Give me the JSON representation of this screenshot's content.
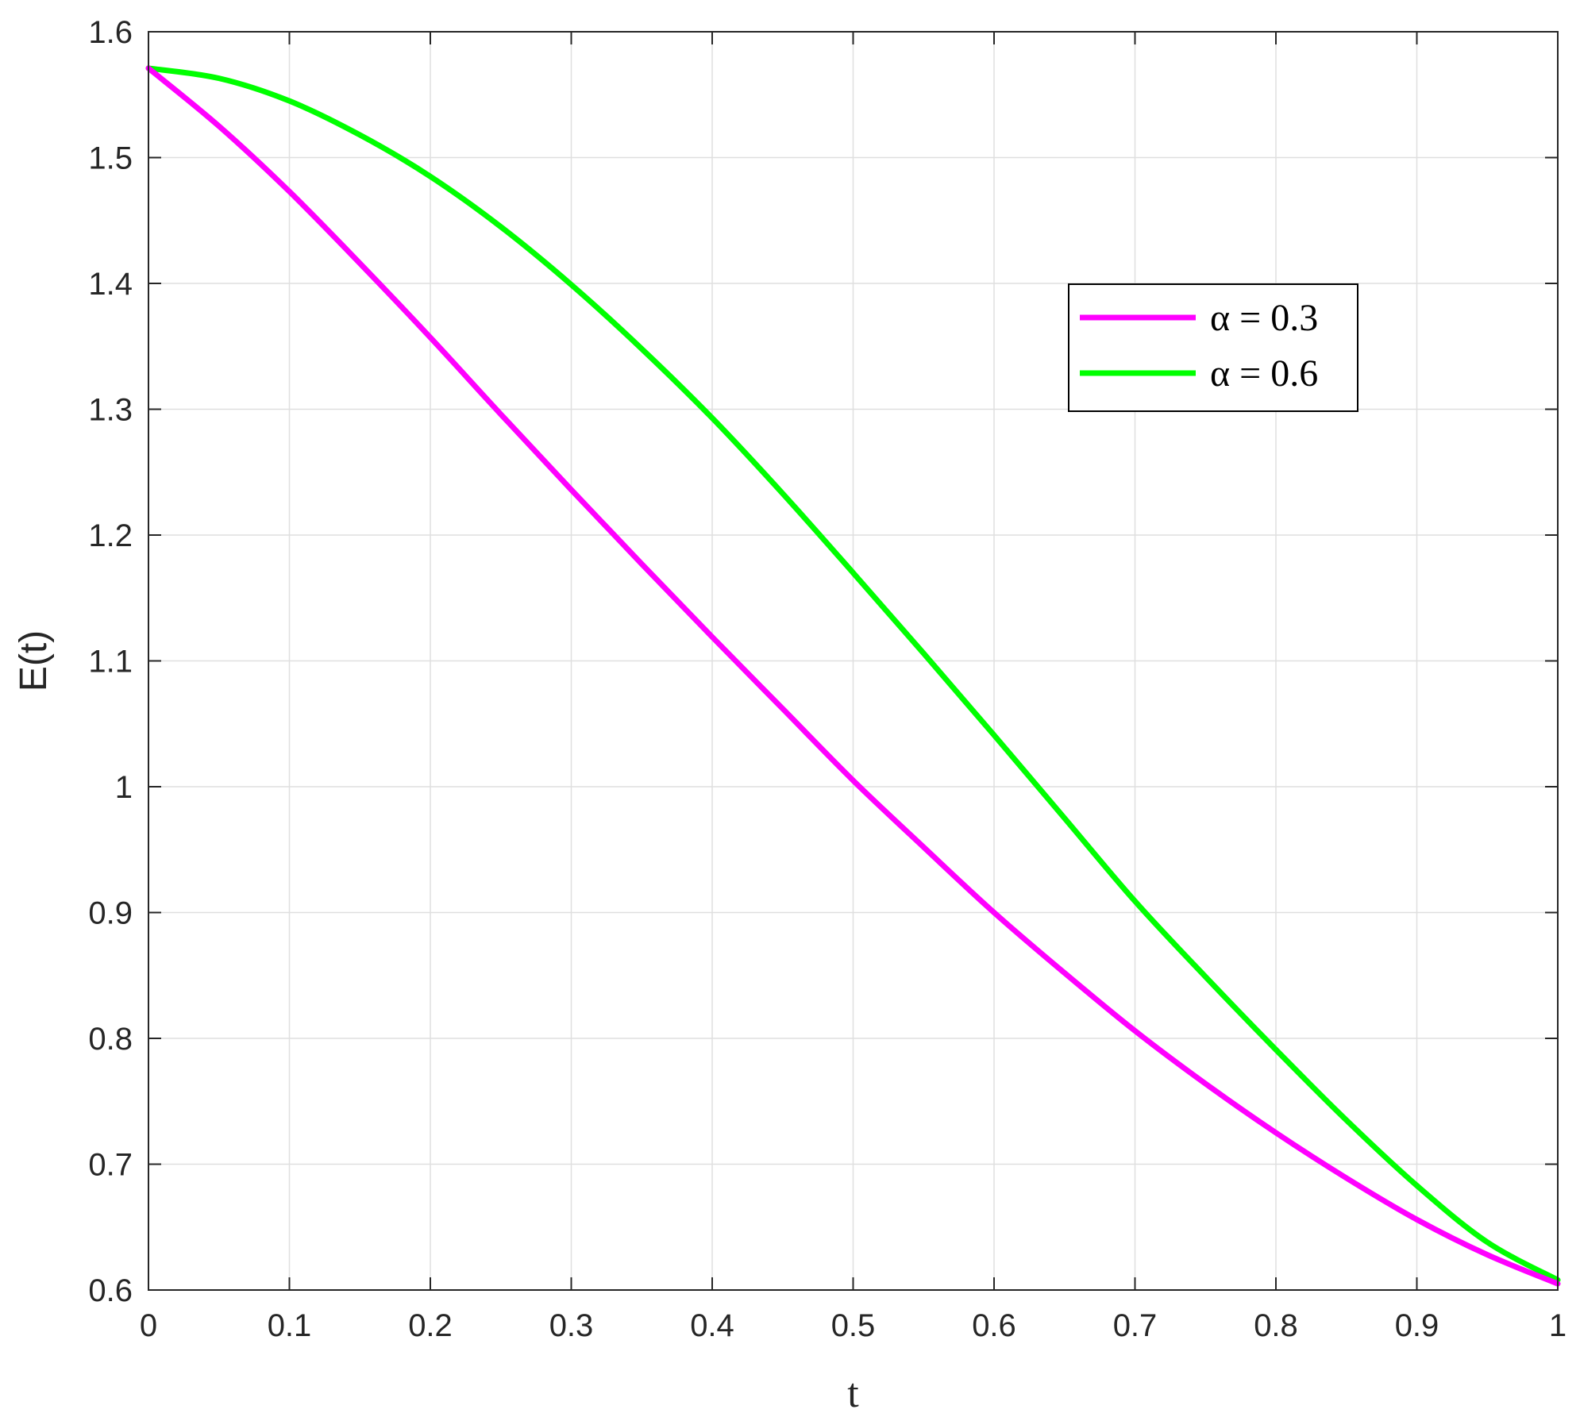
{
  "chart_data": {
    "type": "line",
    "title": "",
    "xlabel": "t",
    "ylabel": "E(t)",
    "xlim": [
      0,
      1
    ],
    "ylim": [
      0.6,
      1.6
    ],
    "xticks": [
      0,
      0.1,
      0.2,
      0.3,
      0.4,
      0.5,
      0.6,
      0.7,
      0.8,
      0.9,
      1
    ],
    "xtick_labels": [
      "0",
      "0.1",
      "0.2",
      "0.3",
      "0.4",
      "0.5",
      "0.6",
      "0.7",
      "0.8",
      "0.9",
      "1"
    ],
    "yticks": [
      0.6,
      0.7,
      0.8,
      0.9,
      1.0,
      1.1,
      1.2,
      1.3,
      1.4,
      1.5,
      1.6
    ],
    "ytick_labels": [
      "0.6",
      "0.7",
      "0.8",
      "0.9",
      "1",
      "1.1",
      "1.2",
      "1.3",
      "1.4",
      "1.5",
      "1.6"
    ],
    "grid": true,
    "legend_position": "top-right",
    "x": [
      0,
      0.05,
      0.1,
      0.15,
      0.2,
      0.25,
      0.3,
      0.35,
      0.4,
      0.45,
      0.5,
      0.55,
      0.6,
      0.65,
      0.7,
      0.75,
      0.8,
      0.85,
      0.9,
      0.95,
      1.0
    ],
    "series": [
      {
        "name": "α = 0.3",
        "color": "#ff00ff",
        "values": [
          1.571,
          1.525,
          1.473,
          1.416,
          1.357,
          1.296,
          1.236,
          1.177,
          1.119,
          1.062,
          1.005,
          0.952,
          0.9,
          0.852,
          0.806,
          0.764,
          0.725,
          0.689,
          0.656,
          0.628,
          0.605
        ]
      },
      {
        "name": "α = 0.6",
        "color": "#00ff00",
        "values": [
          1.571,
          1.563,
          1.545,
          1.518,
          1.485,
          1.445,
          1.399,
          1.348,
          1.293,
          1.233,
          1.17,
          1.106,
          1.041,
          0.975,
          0.909,
          0.849,
          0.791,
          0.735,
          0.683,
          0.638,
          0.608
        ]
      }
    ]
  }
}
